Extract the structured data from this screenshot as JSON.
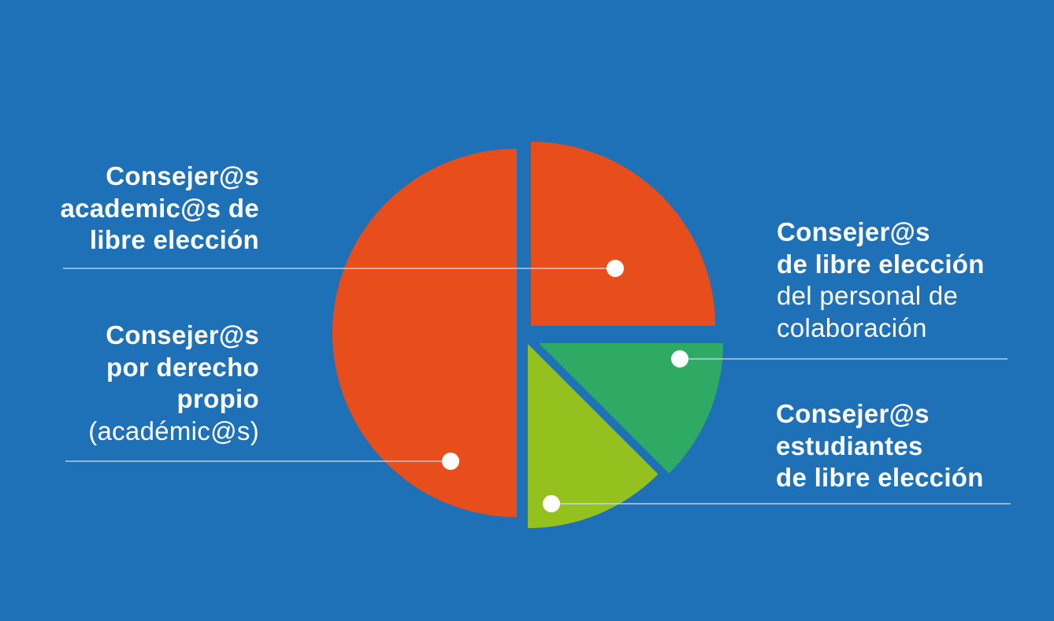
{
  "chart_data": {
    "type": "pie",
    "slices": [
      {
        "key": "academicos-derecho-propio",
        "value": 50,
        "color": "#E84E1B",
        "label_lines": [
          {
            "text": "Consejer@s",
            "weight": "bold"
          },
          {
            "text": "por derecho",
            "weight": "bold"
          },
          {
            "text": "propio",
            "weight": "bold"
          },
          {
            "text": "(académic@s)",
            "weight": "normal"
          }
        ]
      },
      {
        "key": "academicos-libre-eleccion",
        "value": 25,
        "color": "#E84E1B",
        "label_lines": [
          {
            "text": "Consejer@s",
            "weight": "bold"
          },
          {
            "text": "academic@s de",
            "weight": "bold"
          },
          {
            "text": "libre elección",
            "weight": "bold"
          }
        ]
      },
      {
        "key": "personal-colaboracion",
        "value": 12.5,
        "color": "#2EAA64",
        "label_lines": [
          {
            "text": "Consejer@s",
            "weight": "bold"
          },
          {
            "text": "de libre elección",
            "weight": "bold"
          },
          {
            "text": "del personal de",
            "weight": "normal"
          },
          {
            "text": "colaboración",
            "weight": "normal"
          }
        ]
      },
      {
        "key": "estudiantes",
        "value": 12.5,
        "color": "#95C11F",
        "label_lines": [
          {
            "text": "Consejer@s",
            "weight": "bold"
          },
          {
            "text": "estudiantes",
            "weight": "bold"
          },
          {
            "text": "de libre elección",
            "weight": "bold"
          }
        ]
      }
    ]
  },
  "colors": {
    "background": "#1E70B7",
    "label_text": "#FFFFFF",
    "leader_line": "#CFE0F0",
    "marker": "#FFFFFF"
  }
}
